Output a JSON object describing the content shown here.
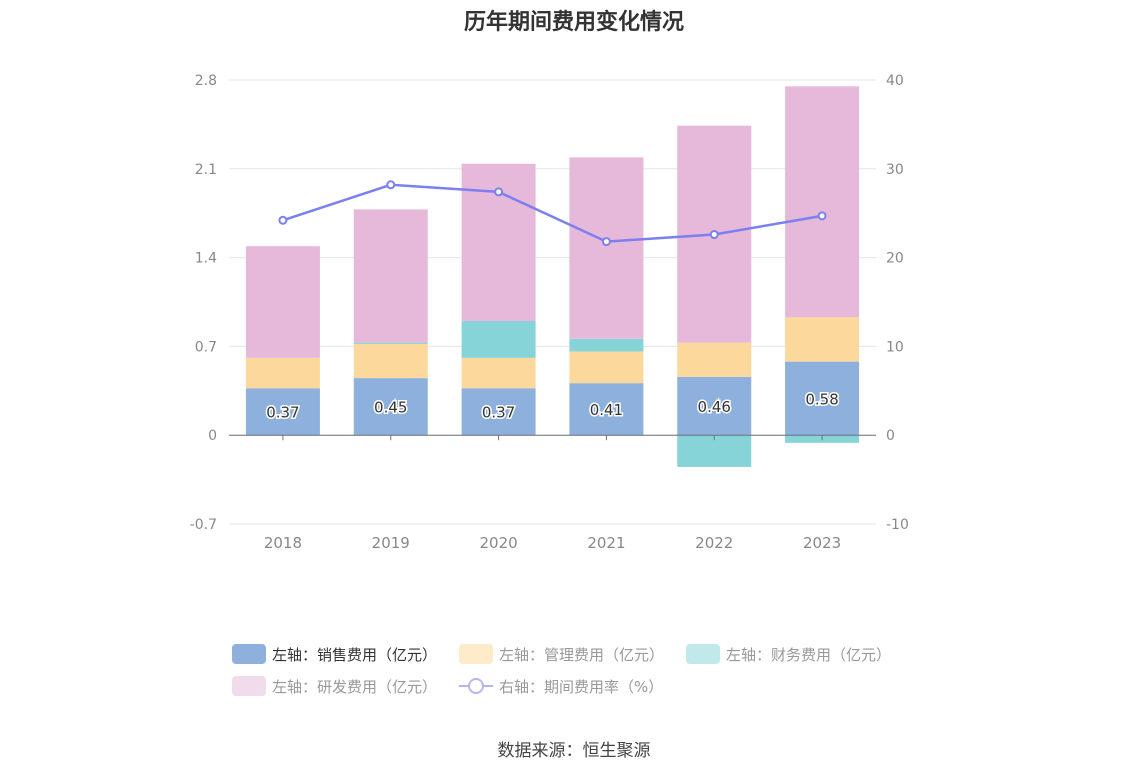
{
  "chart_data": {
    "type": "bar",
    "title": "历年期间费用变化情况",
    "categories": [
      "2018",
      "2019",
      "2020",
      "2021",
      "2022",
      "2023"
    ],
    "left_axis": {
      "ticks": [
        "-0.7",
        "0",
        "0.7",
        "1.4",
        "2.1",
        "2.8"
      ],
      "ylim": [
        -0.7,
        2.8
      ]
    },
    "right_axis": {
      "ticks": [
        "-10",
        "0",
        "10",
        "20",
        "30",
        "40"
      ],
      "ylim": [
        -10,
        40
      ]
    },
    "stacked": true,
    "series": [
      {
        "name": "左轴：销售费用（亿元）",
        "axis": "left",
        "color": "#8eb0dc",
        "values": [
          0.37,
          0.45,
          0.37,
          0.41,
          0.46,
          0.58
        ],
        "labels": [
          "0.37",
          "0.45",
          "0.37",
          "0.41",
          "0.46",
          "0.58"
        ]
      },
      {
        "name": "左轴：管理费用（亿元）",
        "axis": "left",
        "color": "#fdd89c",
        "values": [
          0.24,
          0.27,
          0.24,
          0.25,
          0.27,
          0.35
        ]
      },
      {
        "name": "左轴：财务费用（亿元）",
        "axis": "left",
        "color": "#86d4d8",
        "values": [
          0.0,
          0.01,
          0.29,
          0.1,
          -0.25,
          -0.06
        ]
      },
      {
        "name": "左轴：研发费用（亿元）",
        "axis": "left",
        "color": "#e6b9da",
        "values": [
          0.88,
          1.05,
          1.24,
          1.43,
          1.71,
          1.82
        ]
      },
      {
        "name": "右轴：期间费用率（%）",
        "axis": "right",
        "type": "line",
        "color": "#7b7ff0",
        "values": [
          24.2,
          28.2,
          27.4,
          21.8,
          22.6,
          24.7
        ]
      }
    ],
    "grid": true,
    "legend_position": "bottom"
  },
  "legend": [
    [
      {
        "label": "左轴：销售费用（亿元）",
        "color": "#8eb0dc",
        "kind": "box",
        "active": true
      },
      {
        "label": "左轴：管理费用（亿元）",
        "color": "#fdebc9",
        "kind": "box",
        "active": false
      },
      {
        "label": "左轴：财务费用（亿元）",
        "color": "#c1e9eb",
        "kind": "box",
        "active": false
      }
    ],
    [
      {
        "label": "左轴：研发费用（亿元）",
        "color": "#f1dcec",
        "kind": "box",
        "active": false
      },
      {
        "label": "右轴：期间费用率（%）",
        "color": "#b7b5ee",
        "kind": "line",
        "active": false
      }
    ]
  ],
  "source": "数据来源：恒生聚源"
}
